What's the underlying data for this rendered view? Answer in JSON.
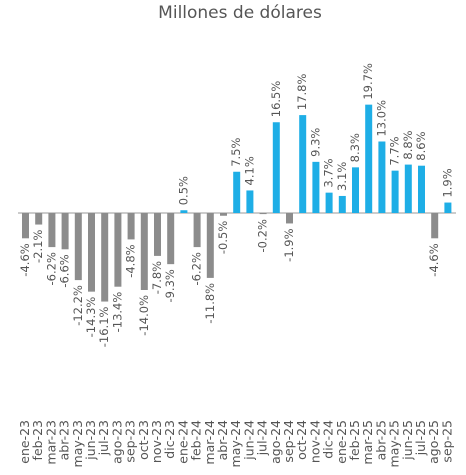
{
  "chart_data": {
    "type": "bar",
    "title": "Millones de dólares",
    "categories": [
      "ene-23",
      "feb-23",
      "mar-23",
      "abr-23",
      "may-23",
      "jun-23",
      "jul-23",
      "ago-23",
      "sep-23",
      "oct-23",
      "nov-23",
      "dic-23",
      "ene-24",
      "feb-24",
      "mar-24",
      "abr-24",
      "may-24",
      "jun-24",
      "jul-24",
      "ago-24",
      "sep-24",
      "oct-24",
      "nov-24",
      "dic-24",
      "ene-25",
      "feb-25",
      "mar-25",
      "abr-25",
      "may-25",
      "jun-25",
      "jul-25",
      "ago-25",
      "sep-25"
    ],
    "values": [
      -4.6,
      -2.1,
      -6.2,
      -6.6,
      -12.2,
      -14.3,
      -16.1,
      -13.4,
      -4.8,
      -14.0,
      -7.8,
      -9.3,
      0.5,
      -6.2,
      -11.8,
      -0.5,
      7.5,
      4.1,
      -0.2,
      16.5,
      -1.9,
      17.8,
      9.3,
      3.7,
      3.1,
      8.3,
      19.7,
      13.0,
      7.7,
      8.8,
      8.6,
      -4.6,
      1.9
    ],
    "value_labels": [
      "-4.6%",
      "-2.1%",
      "-6.2%",
      "-6.6%",
      "-12.2%",
      "-14.3%",
      "-16.1%",
      "-13.4%",
      "-4.8%",
      "-14.0%",
      "-7.8%",
      "-9.3%",
      "0.5%",
      "-6.2%",
      "-11.8%",
      "-0.5%",
      "7.5%",
      "4.1%",
      "-0.2%",
      "16.5%",
      "-1.9%",
      "17.8%",
      "9.3%",
      "3.7%",
      "3.1%",
      "8.3%",
      "19.7%",
      "13.0%",
      "7.7%",
      "8.8%",
      "8.6%",
      "-4.6%",
      "1.9%"
    ],
    "positive_color": "#1eaee6",
    "negative_color": "#8c8c8c",
    "ylim": [
      -20,
      20
    ]
  }
}
